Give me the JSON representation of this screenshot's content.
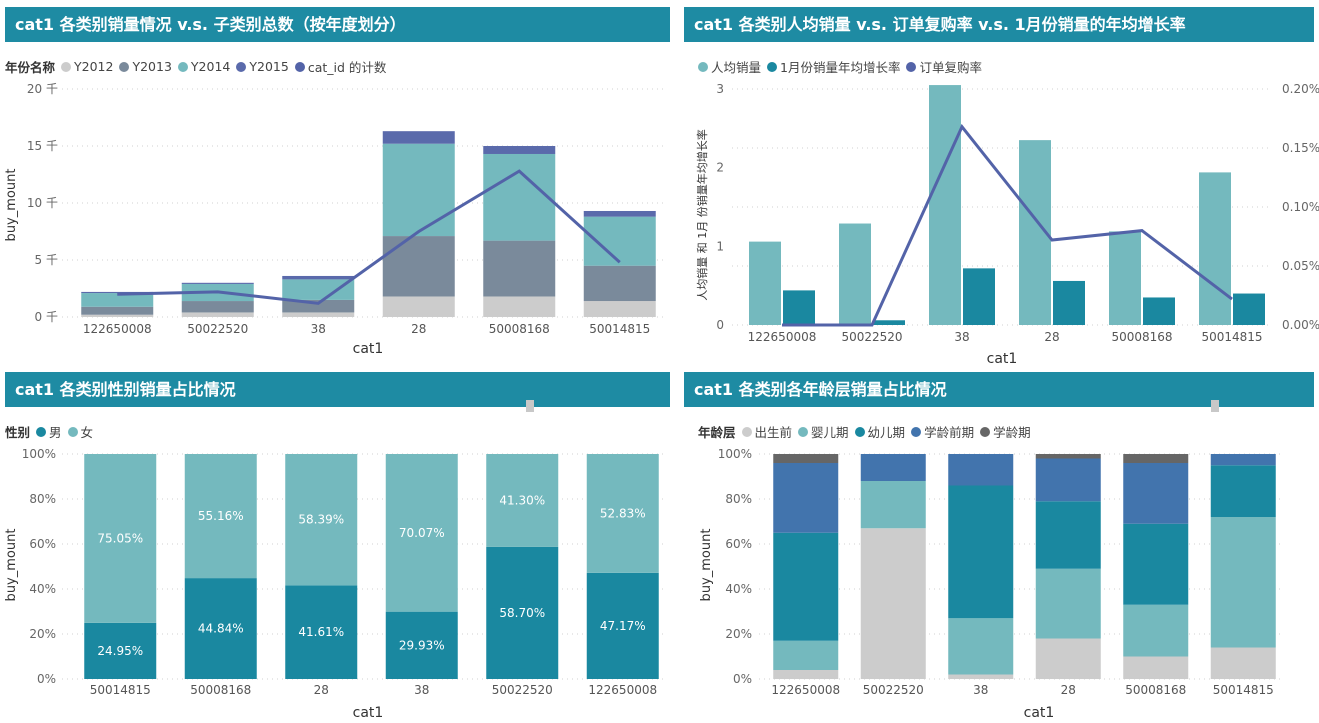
{
  "colors": {
    "header": "#1e8ba3",
    "y2012": "#cccccc",
    "y2013": "#7a8a9b",
    "y2014": "#74b9be",
    "y2015": "#5a6aab",
    "line": "#5363a8",
    "teal_light": "#74b9be",
    "teal_dark": "#1a88a0",
    "blue": "#4274ad",
    "gray_dark": "#666666"
  },
  "panels": [
    {
      "title": "cat1 各类别销量情况 v.s. 子类别总数（按年度划分）",
      "legend": {
        "title": "年份名称",
        "items": [
          {
            "label": "Y2012",
            "color": "#cccccc"
          },
          {
            "label": "Y2013",
            "color": "#7a8a9b"
          },
          {
            "label": "Y2014",
            "color": "#74b9be"
          },
          {
            "label": "Y2015",
            "color": "#5a6aab"
          },
          {
            "label": "cat_id 的计数",
            "color": "#5363a8"
          }
        ]
      }
    },
    {
      "title": "cat1 各类别人均销量 v.s. 订单复购率 v.s. 1月份销量的年均增长率",
      "legend": {
        "title": "",
        "items": [
          {
            "label": "人均销量",
            "color": "#74b9be"
          },
          {
            "label": "1月份销量年均增长率",
            "color": "#1a88a0"
          },
          {
            "label": "订单复购率",
            "color": "#5363a8"
          }
        ]
      }
    },
    {
      "title": "cat1 各类别性别销量占比情况",
      "legend": {
        "title": "性别",
        "items": [
          {
            "label": "男",
            "color": "#1a88a0"
          },
          {
            "label": "女",
            "color": "#74b9be"
          }
        ]
      }
    },
    {
      "title": "cat1 各类别各年龄层销量占比情况",
      "legend": {
        "title": "年龄层",
        "items": [
          {
            "label": "出生前",
            "color": "#cccccc"
          },
          {
            "label": "婴儿期",
            "color": "#74b9be"
          },
          {
            "label": "幼儿期",
            "color": "#1a88a0"
          },
          {
            "label": "学龄前期",
            "color": "#4274ad"
          },
          {
            "label": "学龄期",
            "color": "#666666"
          }
        ]
      }
    }
  ],
  "chart_data": [
    {
      "type": "bar",
      "stacked": true,
      "title": "cat1 各类别销量情况 v.s. 子类别总数（按年度划分）",
      "xlabel": "cat1",
      "ylabel": "buy_mount",
      "categories": [
        "122650008",
        "50022520",
        "38",
        "28",
        "50008168",
        "50014815"
      ],
      "y_ticks": [
        "0 千",
        "5 千",
        "10 千",
        "15 千",
        "20 千"
      ],
      "ylim": [
        0,
        20000
      ],
      "series": [
        {
          "name": "Y2012",
          "values": [
            200,
            400,
            400,
            1800,
            1800,
            1400
          ]
        },
        {
          "name": "Y2013",
          "values": [
            700,
            1000,
            1100,
            5300,
            4900,
            3100
          ]
        },
        {
          "name": "Y2014",
          "values": [
            1200,
            1500,
            1800,
            8100,
            7600,
            4300
          ]
        },
        {
          "name": "Y2015",
          "values": [
            100,
            100,
            300,
            1100,
            700,
            500
          ]
        }
      ],
      "line": {
        "name": "cat_id 的计数",
        "values": [
          2000,
          2200,
          1200,
          7500,
          12800,
          4800
        ]
      }
    },
    {
      "type": "bar",
      "title": "cat1 各类别人均销量 v.s. 订单复购率 v.s. 1月份销量的年均增长率",
      "xlabel": "cat1",
      "ylabel": "人均销量 和 1月 份销量年均增长率",
      "categories": [
        "122650008",
        "50022520",
        "38",
        "28",
        "50008168",
        "50014815"
      ],
      "y_ticks": [
        "0",
        "1",
        "2",
        "3"
      ],
      "ylim": [
        0,
        3
      ],
      "y2_ticks": [
        "0.00%",
        "0.05%",
        "0.10%",
        "0.15%",
        "0.20%"
      ],
      "y2lim": [
        0,
        0.2
      ],
      "series": [
        {
          "name": "人均销量",
          "values": [
            1.06,
            1.29,
            3.05,
            2.35,
            1.19,
            1.94
          ]
        },
        {
          "name": "1月份销量年均增长率",
          "values": [
            0.44,
            0.06,
            0.72,
            0.56,
            0.35,
            0.4
          ]
        }
      ],
      "line": {
        "name": "订单复购率",
        "values": [
          0.0,
          0.0,
          0.168,
          0.072,
          0.08,
          0.022
        ]
      }
    },
    {
      "type": "bar",
      "stacked": true,
      "percent": true,
      "title": "cat1 各类别性别销量占比情况",
      "xlabel": "cat1",
      "ylabel": "buy_mount",
      "categories": [
        "50014815",
        "50008168",
        "28",
        "38",
        "50022520",
        "122650008"
      ],
      "y_ticks": [
        "0%",
        "20%",
        "40%",
        "60%",
        "80%",
        "100%"
      ],
      "series": [
        {
          "name": "男",
          "values": [
            24.95,
            44.84,
            41.61,
            29.93,
            58.7,
            47.17
          ],
          "labels": [
            "24.95%",
            "44.84%",
            "41.61%",
            "29.93%",
            "58.70%",
            "47.17%"
          ]
        },
        {
          "name": "女",
          "values": [
            75.05,
            55.16,
            58.39,
            70.07,
            41.3,
            52.83
          ],
          "labels": [
            "75.05%",
            "55.16%",
            "58.39%",
            "70.07%",
            "41.30%",
            "52.83%"
          ]
        }
      ]
    },
    {
      "type": "bar",
      "stacked": true,
      "percent": true,
      "title": "cat1 各类别各年龄层销量占比情况",
      "xlabel": "cat1",
      "ylabel": "buy_mount",
      "categories": [
        "122650008",
        "50022520",
        "38",
        "28",
        "50008168",
        "50014815"
      ],
      "y_ticks": [
        "0%",
        "20%",
        "40%",
        "60%",
        "80%",
        "100%"
      ],
      "series": [
        {
          "name": "出生前",
          "values": [
            4,
            67,
            2,
            18,
            10,
            14
          ]
        },
        {
          "name": "婴儿期",
          "values": [
            13,
            21,
            25,
            31,
            23,
            58
          ]
        },
        {
          "name": "幼儿期",
          "values": [
            48,
            0,
            59,
            30,
            36,
            23
          ]
        },
        {
          "name": "学龄前期",
          "values": [
            31,
            12,
            14,
            19,
            27,
            5
          ]
        },
        {
          "name": "学龄期",
          "values": [
            4,
            0,
            0,
            2,
            4,
            0
          ]
        }
      ]
    }
  ]
}
